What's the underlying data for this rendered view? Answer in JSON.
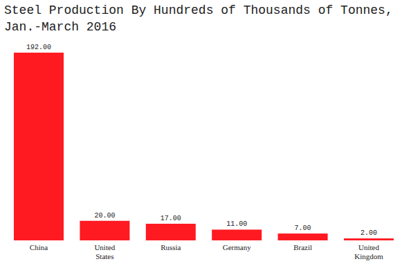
{
  "chart_data": {
    "type": "bar",
    "title": "Steel Production By Hundreds of Thousands of Tonnes, Jan.-March 2016",
    "categories": [
      "China",
      "United States",
      "Russia",
      "Germany",
      "Brazil",
      "United Kingdom"
    ],
    "values": [
      192,
      20,
      17,
      11,
      7,
      2
    ],
    "value_labels": [
      "192.00",
      "20.00",
      "17.00",
      "11.00",
      "7.00",
      "2.00"
    ],
    "color": "#ff1a22",
    "ylim": [
      0,
      192
    ],
    "data_labels": true,
    "tick_labels": false
  }
}
